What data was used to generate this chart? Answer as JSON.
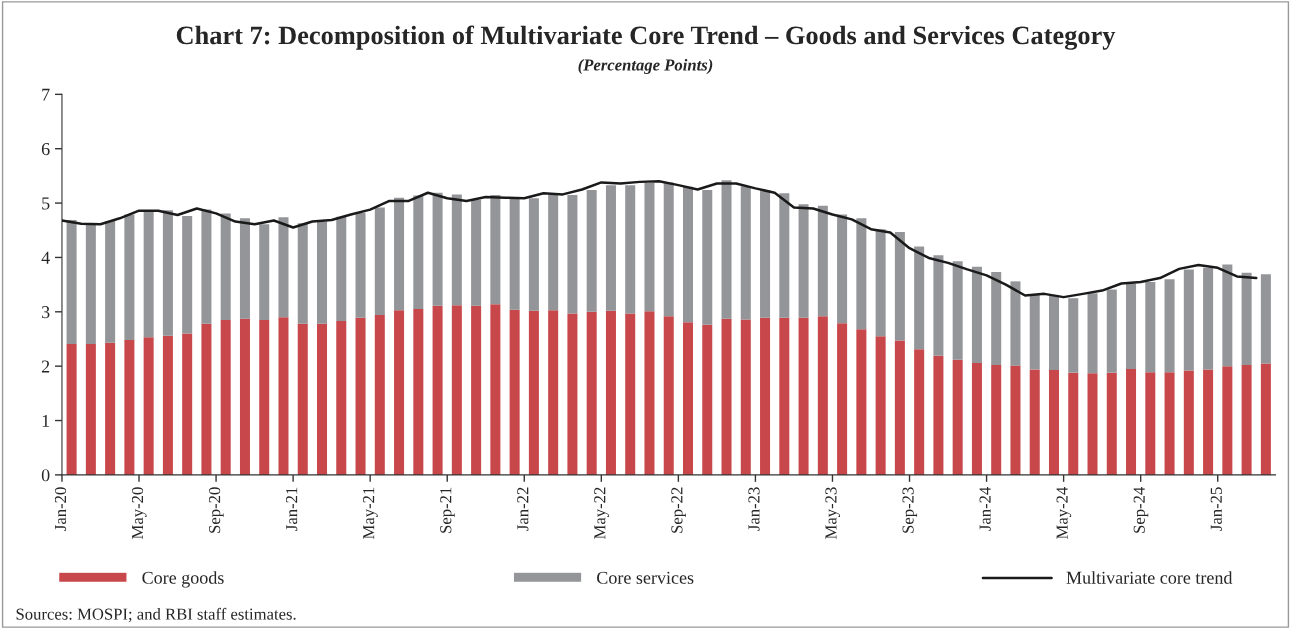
{
  "chart_data": {
    "type": "bar",
    "stacked": true,
    "title": "Chart 7: Decomposition of Multivariate Core Trend – Goods and Services Category",
    "subtitle": "(Percentage Points)",
    "categories": [
      "Jan-20",
      null,
      null,
      null,
      "May-20",
      null,
      null,
      null,
      "Sep-20",
      null,
      null,
      null,
      "Jan-21",
      null,
      null,
      null,
      "May-21",
      null,
      null,
      null,
      "Sep-21",
      null,
      null,
      null,
      "Jan-22",
      null,
      null,
      null,
      "May-22",
      null,
      null,
      null,
      "Sep-22",
      null,
      null,
      null,
      "Jan-23",
      null,
      null,
      null,
      "May-23",
      null,
      null,
      null,
      "Sep-23",
      null,
      null,
      null,
      "Jan-24",
      null,
      null,
      null,
      "May-24",
      null,
      null,
      null,
      "Sep-24",
      null,
      null,
      null,
      "Jan-25",
      null,
      null
    ],
    "series": [
      {
        "name": "Core goods",
        "color": "#c8474a",
        "values": [
          2.41,
          2.41,
          2.43,
          2.48,
          2.53,
          2.56,
          2.6,
          2.78,
          2.85,
          2.87,
          2.85,
          2.9,
          2.78,
          2.78,
          2.83,
          2.89,
          2.94,
          3.03,
          3.05,
          3.11,
          3.12,
          3.11,
          3.14,
          3.04,
          3.02,
          3.03,
          2.97,
          3.0,
          3.02,
          2.97,
          3.01,
          2.92,
          2.81,
          2.76,
          2.87,
          2.86,
          2.89,
          2.89,
          2.89,
          2.92,
          2.79,
          2.68,
          2.55,
          2.47,
          2.31,
          2.19,
          2.12,
          2.06,
          2.02,
          2.01,
          1.94,
          1.93,
          1.88,
          1.87,
          1.88,
          1.95,
          1.89,
          1.89,
          1.92,
          1.94,
          2.0,
          2.02,
          2.05
        ]
      },
      {
        "name": "Core services",
        "color": "#939598",
        "values": [
          2.28,
          2.2,
          2.24,
          2.31,
          2.34,
          2.31,
          2.16,
          2.1,
          1.96,
          1.85,
          1.76,
          1.84,
          1.85,
          1.88,
          1.92,
          1.93,
          1.98,
          2.07,
          2.09,
          2.08,
          2.04,
          1.95,
          2.01,
          2.05,
          2.07,
          2.13,
          2.18,
          2.24,
          2.31,
          2.36,
          2.36,
          2.46,
          2.49,
          2.48,
          2.55,
          2.45,
          2.35,
          2.29,
          2.09,
          2.03,
          2.0,
          2.04,
          1.97,
          2.0,
          1.89,
          1.85,
          1.81,
          1.77,
          1.71,
          1.55,
          1.37,
          1.38,
          1.37,
          1.47,
          1.53,
          1.57,
          1.66,
          1.71,
          1.86,
          1.87,
          1.87,
          1.7,
          1.64
        ]
      },
      {
        "name": "Multivariate core trend",
        "type": "line",
        "color": "#1a1a1a",
        "values": [
          4.68,
          4.62,
          4.61,
          4.72,
          4.86,
          4.86,
          4.78,
          4.9,
          4.81,
          4.66,
          4.61,
          4.68,
          4.55,
          4.66,
          4.69,
          4.79,
          4.88,
          5.04,
          5.04,
          5.19,
          5.09,
          5.04,
          5.11,
          5.1,
          5.09,
          5.18,
          5.16,
          5.25,
          5.38,
          5.36,
          5.39,
          5.4,
          5.33,
          5.25,
          5.36,
          5.36,
          5.27,
          5.19,
          4.92,
          4.9,
          4.79,
          4.7,
          4.52,
          4.46,
          4.17,
          3.99,
          3.9,
          3.78,
          3.67,
          3.5,
          3.3,
          3.33,
          3.27,
          3.33,
          3.39,
          3.52,
          3.55,
          3.62,
          3.79,
          3.86,
          3.81,
          3.65,
          3.62
        ]
      }
    ],
    "ylim": [
      0,
      7
    ],
    "yticks": [
      0,
      1,
      2,
      3,
      4,
      5,
      6,
      7
    ],
    "grid": false,
    "legend": "bottom",
    "annotations": [
      "Sources: MOSPI; and RBI staff estimates."
    ]
  }
}
